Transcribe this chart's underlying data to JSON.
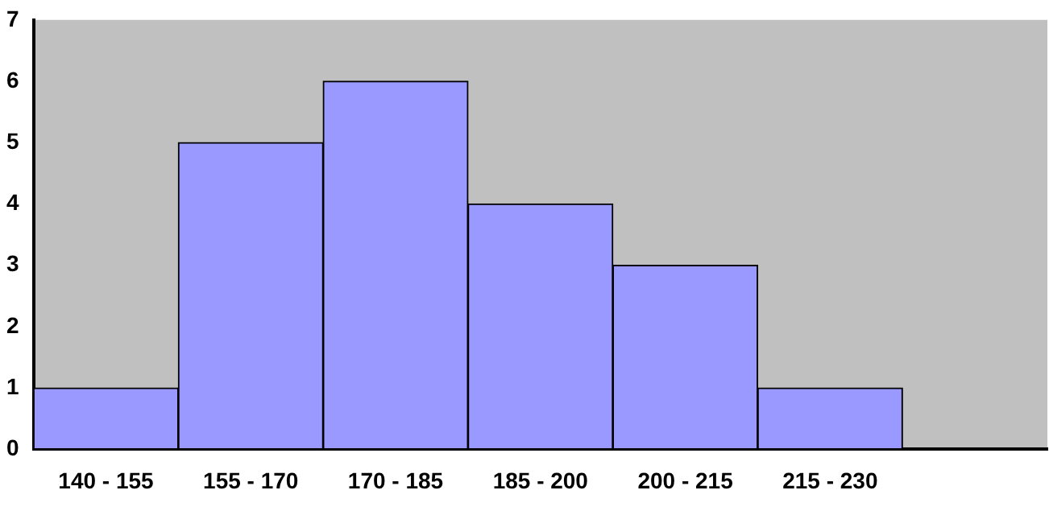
{
  "chart_data": {
    "type": "bar",
    "categories": [
      "140 - 155",
      "155 - 170",
      "170 - 185",
      "185 - 200",
      "200 - 215",
      "215 - 230",
      null
    ],
    "values": [
      1,
      5,
      6,
      4,
      3,
      1,
      null
    ],
    "color": "#9999ff",
    "ylim": [
      0,
      7
    ],
    "yticks": [
      0,
      1,
      2,
      3,
      4,
      5,
      6,
      7
    ],
    "grid": false,
    "legend": false
  }
}
